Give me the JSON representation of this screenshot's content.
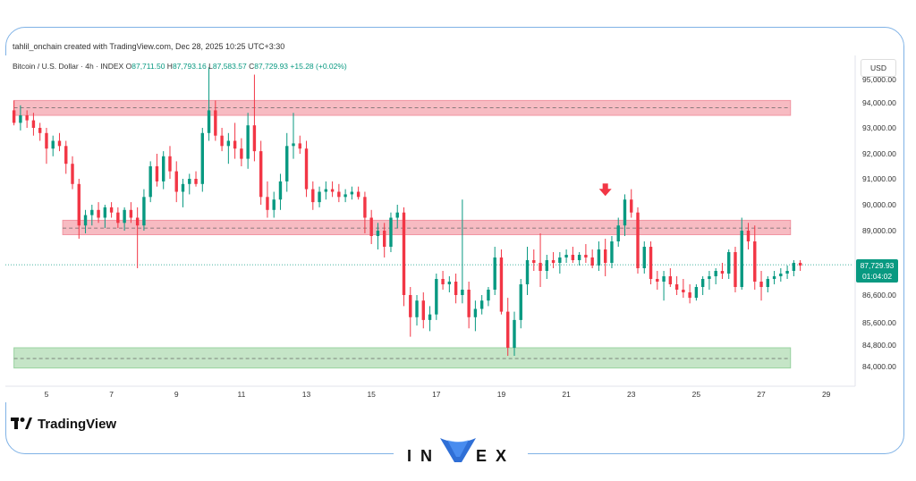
{
  "header": {
    "created_by": "tahlil_onchain created with TradingView.com, Dec 28, 2025 10:25 UTC+3:30"
  },
  "legend": {
    "symbol": "Bitcoin / U.S. Dollar · 4h · INDEX",
    "open_label": "O",
    "open": "87,711.50",
    "high_label": "H",
    "high": "87,793.16",
    "low_label": "L",
    "low": "87,583.57",
    "close_label": "C",
    "close": "87,729.93",
    "change": "+15.28 (+0.02%)"
  },
  "currency_button": "USD",
  "price_tag": {
    "price": "87,729.93",
    "countdown": "01:04:02"
  },
  "branding": {
    "tradingview": "TradingView",
    "invex_left": "IN",
    "invex_right": "EX"
  },
  "colors": {
    "up": "#089981",
    "down": "#f23645",
    "resistance_zone": "#f7b4bc",
    "support_zone": "#bfe3c2",
    "arrow": "#f23645"
  },
  "chart_data": {
    "type": "candlestick",
    "ylim": [
      83500,
      95400
    ],
    "y_ticks": [
      84000,
      84800,
      85600,
      86600,
      87600,
      88000,
      89000,
      90000,
      91000,
      92000,
      93000,
      94000,
      95000
    ],
    "y_tick_labels": [
      "84,000.00",
      "84,800.00",
      "85,600.00",
      "86,600.00",
      "",
      "",
      "89,000.00",
      "90,000.00",
      "91,000.00",
      "92,000.00",
      "93,000.00",
      "94,000.00",
      "95,000.00"
    ],
    "x_tick_labels": [
      "5",
      "7",
      "9",
      "11",
      "13",
      "15",
      "17",
      "19",
      "21",
      "23",
      "25",
      "27",
      "29"
    ],
    "x_tick_days": [
      5,
      7,
      9,
      11,
      13,
      15,
      17,
      19,
      21,
      23,
      25,
      27,
      29
    ],
    "x_range_days": [
      3.9,
      30.0
    ],
    "last_price": 87729.93,
    "zones": [
      {
        "kind": "resistance",
        "from_day": 4.0,
        "to_day": 27.9,
        "low": 93500,
        "high": 94100,
        "mid": 93800
      },
      {
        "kind": "resistance",
        "from_day": 5.5,
        "to_day": 27.9,
        "low": 88850,
        "high": 89400,
        "mid": 89100
      },
      {
        "kind": "support",
        "from_day": 4.0,
        "to_day": 27.9,
        "low": 83900,
        "high": 84700,
        "mid": 84300
      }
    ],
    "arrow": {
      "day": 22.2,
      "price": 90200
    },
    "candles": [
      [
        4.0,
        93700,
        94100,
        93100,
        93200
      ],
      [
        4.2,
        93200,
        93900,
        92900,
        93500
      ],
      [
        4.4,
        93500,
        93700,
        93000,
        93300
      ],
      [
        4.6,
        93300,
        93600,
        92700,
        93000
      ],
      [
        4.8,
        93000,
        93200,
        92500,
        92800
      ],
      [
        5.0,
        92800,
        93000,
        91600,
        92200
      ],
      [
        5.2,
        92200,
        92700,
        91900,
        92500
      ],
      [
        5.4,
        92500,
        92800,
        92100,
        92300
      ],
      [
        5.6,
        92300,
        92500,
        91200,
        91600
      ],
      [
        5.8,
        91600,
        91900,
        90600,
        90800
      ],
      [
        6.0,
        90800,
        91000,
        88700,
        89200
      ],
      [
        6.2,
        89200,
        89800,
        88900,
        89600
      ],
      [
        6.4,
        89600,
        90000,
        89200,
        89800
      ],
      [
        6.6,
        89800,
        90100,
        89300,
        89500
      ],
      [
        6.8,
        89500,
        90000,
        89100,
        89900
      ],
      [
        7.0,
        89900,
        90100,
        89500,
        89700
      ],
      [
        7.2,
        89700,
        89900,
        89100,
        89300
      ],
      [
        7.4,
        89300,
        89900,
        89000,
        89800
      ],
      [
        7.6,
        89800,
        90100,
        89300,
        89500
      ],
      [
        7.8,
        89500,
        89900,
        87600,
        89200
      ],
      [
        8.0,
        89200,
        90600,
        89000,
        90300
      ],
      [
        8.2,
        90300,
        91700,
        90100,
        91500
      ],
      [
        8.4,
        91500,
        92000,
        90700,
        90900
      ],
      [
        8.6,
        90900,
        92100,
        90600,
        91900
      ],
      [
        8.8,
        91900,
        92300,
        91000,
        91300
      ],
      [
        9.0,
        91300,
        91700,
        90100,
        90500
      ],
      [
        9.2,
        90500,
        91000,
        89900,
        90800
      ],
      [
        9.4,
        90800,
        91200,
        90400,
        91000
      ],
      [
        9.6,
        91000,
        91300,
        90700,
        90800
      ],
      [
        9.8,
        90800,
        93000,
        90500,
        92800
      ],
      [
        10.0,
        92800,
        95500,
        92500,
        93700
      ],
      [
        10.2,
        93700,
        94100,
        92500,
        92700
      ],
      [
        10.4,
        92700,
        93000,
        92100,
        92300
      ],
      [
        10.6,
        92300,
        92800,
        91600,
        92500
      ],
      [
        10.8,
        92500,
        93200,
        91800,
        92200
      ],
      [
        11.0,
        92200,
        92600,
        91500,
        91800
      ],
      [
        11.2,
        91800,
        93600,
        91400,
        93100
      ],
      [
        11.4,
        93100,
        95200,
        91700,
        92100
      ],
      [
        11.6,
        92100,
        92500,
        90000,
        90300
      ],
      [
        11.8,
        90300,
        90900,
        89500,
        89800
      ],
      [
        12.0,
        89800,
        90500,
        89500,
        90200
      ],
      [
        12.2,
        90200,
        91200,
        89800,
        90900
      ],
      [
        12.4,
        90900,
        92800,
        90500,
        92300
      ],
      [
        12.6,
        92300,
        93600,
        91800,
        92400
      ],
      [
        12.8,
        92400,
        92700,
        92000,
        92200
      ],
      [
        13.0,
        92200,
        92500,
        90300,
        90600
      ],
      [
        13.2,
        90600,
        90900,
        89800,
        90100
      ],
      [
        13.4,
        90100,
        90700,
        89900,
        90500
      ],
      [
        13.6,
        90500,
        90900,
        90200,
        90600
      ],
      [
        13.8,
        90600,
        90900,
        90300,
        90500
      ],
      [
        14.0,
        90500,
        90800,
        90100,
        90300
      ],
      [
        14.2,
        90300,
        90600,
        90100,
        90400
      ],
      [
        14.4,
        90400,
        90700,
        90200,
        90500
      ],
      [
        14.6,
        90500,
        90700,
        90200,
        90300
      ],
      [
        14.8,
        90300,
        90500,
        88900,
        89500
      ],
      [
        15.0,
        89500,
        89800,
        88500,
        88800
      ],
      [
        15.2,
        88800,
        89300,
        88300,
        89000
      ],
      [
        15.4,
        89000,
        89300,
        88000,
        88400
      ],
      [
        15.6,
        88400,
        89700,
        88200,
        89500
      ],
      [
        15.8,
        89500,
        90000,
        89100,
        89700
      ],
      [
        16.0,
        89700,
        89900,
        86200,
        86600
      ],
      [
        16.2,
        86600,
        86900,
        85100,
        85800
      ],
      [
        16.4,
        85800,
        86600,
        85500,
        86400
      ],
      [
        16.6,
        86400,
        86700,
        85400,
        85700
      ],
      [
        16.8,
        85700,
        86200,
        85300,
        85900
      ],
      [
        17.0,
        85900,
        87400,
        85700,
        87200
      ],
      [
        17.2,
        87200,
        87500,
        86800,
        87000
      ],
      [
        17.4,
        87000,
        87300,
        86700,
        87100
      ],
      [
        17.6,
        87100,
        87400,
        86300,
        86600
      ],
      [
        17.8,
        86600,
        90200,
        86300,
        86800
      ],
      [
        18.0,
        86800,
        87100,
        85400,
        85800
      ],
      [
        18.2,
        85800,
        86400,
        85300,
        86100
      ],
      [
        18.4,
        86100,
        86600,
        85900,
        86400
      ],
      [
        18.6,
        86400,
        86900,
        86200,
        86800
      ],
      [
        18.8,
        86800,
        88400,
        86600,
        88000
      ],
      [
        19.0,
        88000,
        88300,
        85900,
        86000
      ],
      [
        19.2,
        86000,
        86500,
        84400,
        84700
      ],
      [
        19.4,
        84700,
        86000,
        84400,
        85700
      ],
      [
        19.6,
        85700,
        87200,
        85400,
        87000
      ],
      [
        19.8,
        87000,
        88400,
        86600,
        87900
      ],
      [
        20.0,
        87900,
        88300,
        87500,
        87800
      ],
      [
        20.2,
        87800,
        88900,
        86900,
        87500
      ],
      [
        20.4,
        87500,
        88100,
        87200,
        87900
      ],
      [
        20.6,
        87900,
        88200,
        87600,
        87800
      ],
      [
        20.8,
        87800,
        88200,
        87400,
        88000
      ],
      [
        21.0,
        88000,
        88300,
        87800,
        88100
      ],
      [
        21.2,
        88100,
        88400,
        87800,
        87900
      ],
      [
        21.4,
        87900,
        88200,
        87700,
        88100
      ],
      [
        21.6,
        88100,
        88500,
        87800,
        88000
      ],
      [
        21.8,
        88000,
        88300,
        87600,
        87700
      ],
      [
        22.0,
        87700,
        88600,
        87500,
        88300
      ],
      [
        22.2,
        88300,
        88700,
        87300,
        87800
      ],
      [
        22.4,
        87800,
        88800,
        87600,
        88600
      ],
      [
        22.6,
        88600,
        89500,
        88400,
        89200
      ],
      [
        22.8,
        89200,
        90400,
        88800,
        90200
      ],
      [
        23.0,
        90200,
        90600,
        89500,
        89700
      ],
      [
        23.2,
        89700,
        89900,
        87400,
        87600
      ],
      [
        23.4,
        87600,
        88600,
        87400,
        88400
      ],
      [
        23.6,
        88400,
        88600,
        87000,
        87200
      ],
      [
        23.8,
        87200,
        87500,
        86800,
        87100
      ],
      [
        24.0,
        87100,
        87500,
        86400,
        87300
      ],
      [
        24.2,
        87300,
        87600,
        86900,
        87000
      ],
      [
        24.4,
        87000,
        87300,
        86600,
        86800
      ],
      [
        24.6,
        86800,
        87200,
        86500,
        86700
      ],
      [
        24.8,
        86700,
        87000,
        86300,
        86500
      ],
      [
        25.0,
        86500,
        87000,
        86400,
        86900
      ],
      [
        25.2,
        86900,
        87300,
        86600,
        87200
      ],
      [
        25.4,
        87200,
        87500,
        86800,
        87300
      ],
      [
        25.6,
        87300,
        87600,
        87000,
        87500
      ],
      [
        25.8,
        87500,
        87800,
        87200,
        87400
      ],
      [
        26.0,
        87400,
        88300,
        87200,
        88200
      ],
      [
        26.2,
        88200,
        88400,
        86700,
        86900
      ],
      [
        26.4,
        86900,
        89500,
        86800,
        89000
      ],
      [
        26.6,
        89000,
        89300,
        88300,
        88600
      ],
      [
        26.8,
        88600,
        89200,
        86800,
        87100
      ],
      [
        27.0,
        87100,
        87500,
        86400,
        86900
      ],
      [
        27.2,
        86900,
        87300,
        86700,
        87200
      ],
      [
        27.4,
        87200,
        87500,
        87000,
        87300
      ],
      [
        27.6,
        87300,
        87600,
        87100,
        87400
      ],
      [
        27.8,
        87400,
        87700,
        87200,
        87500
      ],
      [
        28.0,
        87500,
        87900,
        87300,
        87800
      ],
      [
        28.2,
        87800,
        87900,
        87500,
        87700
      ]
    ]
  }
}
